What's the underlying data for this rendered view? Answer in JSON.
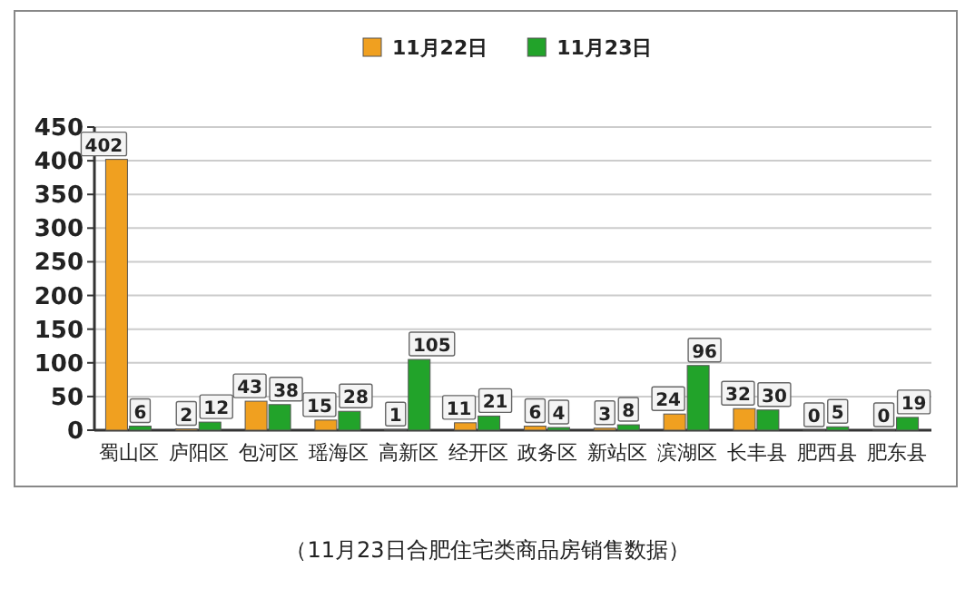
{
  "chart_data": {
    "type": "bar",
    "categories": [
      "蜀山区",
      "庐阳区",
      "包河区",
      "瑶海区",
      "高新区",
      "经开区",
      "政务区",
      "新站区",
      "滨湖区",
      "长丰县",
      "肥西县",
      "肥东县"
    ],
    "series": [
      {
        "name": "11月22日",
        "color": "#f0a020",
        "values": [
          402,
          2,
          43,
          15,
          1,
          11,
          6,
          3,
          24,
          32,
          0,
          0
        ]
      },
      {
        "name": "11月23日",
        "color": "#22a32a",
        "values": [
          6,
          12,
          38,
          28,
          105,
          21,
          4,
          8,
          96,
          30,
          5,
          19
        ]
      }
    ],
    "ylim": [
      0,
      450
    ],
    "yticks": [
      0,
      50,
      100,
      150,
      200,
      250,
      300,
      350,
      400,
      450
    ],
    "grid": "y",
    "legend": "top",
    "data_labels": true,
    "annotations": [
      "（11月23日合肥住宅类商品房销售数据）"
    ]
  }
}
